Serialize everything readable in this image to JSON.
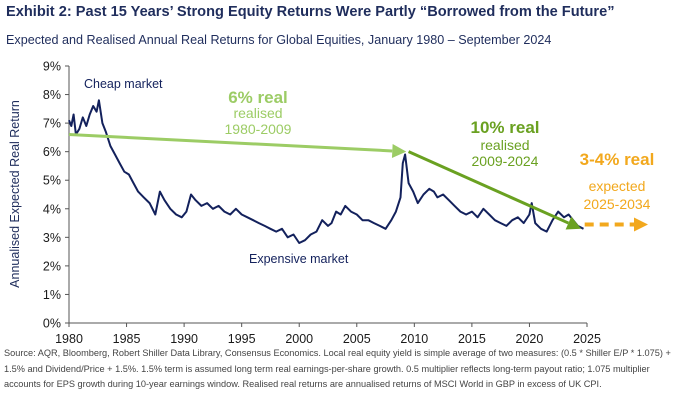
{
  "colors": {
    "series": "#13215c",
    "green_light": "#9ccc65",
    "green_dark": "#6aa121",
    "orange": "#f2a81d",
    "axis": "#555555"
  },
  "chart_data": {
    "type": "line",
    "title": "Exhibit 2: Past 15 Years’ Strong Equity Returns Were Partly “Borrowed from the Future”",
    "subtitle": "Expected and Realised Annual Real Returns for Global Equities, January 1980 – September 2024",
    "xlabel": "",
    "ylabel": "Annualised Expected Real Return",
    "xlim": [
      1980,
      2025
    ],
    "ylim": [
      0,
      9
    ],
    "x_ticks": [
      "1980",
      "1985",
      "1990",
      "1995",
      "2000",
      "2005",
      "2010",
      "2015",
      "2020",
      "2025"
    ],
    "y_ticks": [
      "0%",
      "1%",
      "2%",
      "3%",
      "4%",
      "5%",
      "6%",
      "7%",
      "8%",
      "9%"
    ],
    "grid": false,
    "legend": "none",
    "series": [
      {
        "x": [
          1980.0,
          1980.2,
          1980.4,
          1980.6,
          1980.9,
          1981.2,
          1981.5,
          1981.8,
          1982.1,
          1982.4,
          1982.6,
          1982.9,
          1983.2,
          1983.6,
          1984.0,
          1984.4,
          1984.8,
          1985.2,
          1985.6,
          1986.0,
          1986.5,
          1987.0,
          1987.5,
          1987.9,
          1988.3,
          1988.8,
          1989.3,
          1989.8,
          1990.2,
          1990.6,
          1991.0,
          1991.5,
          1992.0,
          1992.5,
          1993.0,
          1993.5,
          1994.0,
          1994.5,
          1995.0,
          1995.5,
          1996.0,
          1996.5,
          1997.0,
          1997.5,
          1998.0,
          1998.5,
          1999.0,
          1999.5,
          2000.0,
          2000.5,
          2001.0,
          2001.5,
          2002.0,
          2002.5,
          2002.8,
          2003.2,
          2003.6,
          2004.0,
          2004.5,
          2005.0,
          2005.5,
          2006.0,
          2006.5,
          2007.0,
          2007.5,
          2008.0,
          2008.4,
          2008.8,
          2009.0,
          2009.2,
          2009.5,
          2009.9,
          2010.3,
          2010.8,
          2011.3,
          2011.7,
          2012.0,
          2012.5,
          2013.0,
          2013.5,
          2014.0,
          2014.5,
          2015.0,
          2015.5,
          2016.0,
          2016.5,
          2017.0,
          2017.5,
          2018.0,
          2018.5,
          2019.0,
          2019.5,
          2020.0,
          2020.2,
          2020.5,
          2021.0,
          2021.5,
          2022.0,
          2022.5,
          2023.0,
          2023.4,
          2023.8,
          2024.2,
          2024.7
        ],
        "values": [
          7.1,
          6.9,
          7.3,
          6.6,
          6.8,
          7.2,
          6.9,
          7.3,
          7.6,
          7.4,
          7.8,
          7.0,
          6.7,
          6.2,
          5.9,
          5.6,
          5.3,
          5.2,
          4.9,
          4.6,
          4.4,
          4.2,
          3.8,
          4.6,
          4.3,
          4.0,
          3.8,
          3.7,
          3.9,
          4.5,
          4.3,
          4.1,
          4.2,
          4.0,
          4.1,
          3.9,
          3.8,
          4.0,
          3.8,
          3.7,
          3.6,
          3.5,
          3.4,
          3.3,
          3.2,
          3.3,
          3.0,
          3.1,
          2.8,
          2.9,
          3.1,
          3.2,
          3.6,
          3.4,
          3.5,
          3.9,
          3.8,
          4.1,
          3.9,
          3.8,
          3.6,
          3.6,
          3.5,
          3.4,
          3.3,
          3.6,
          3.9,
          4.4,
          5.6,
          5.9,
          4.9,
          4.6,
          4.2,
          4.5,
          4.7,
          4.6,
          4.4,
          4.5,
          4.3,
          4.1,
          3.9,
          3.8,
          3.9,
          3.7,
          4.0,
          3.8,
          3.6,
          3.5,
          3.4,
          3.6,
          3.7,
          3.5,
          3.8,
          4.2,
          3.5,
          3.3,
          3.2,
          3.6,
          3.9,
          3.7,
          3.8,
          3.6,
          3.4,
          3.3
        ]
      }
    ],
    "annotations": {
      "cheap_market": "Cheap market",
      "expensive_market": "Expensive market",
      "arrow1_headline": "6% real",
      "arrow1_line2": "realised",
      "arrow1_line3": "1980-2009",
      "arrow2_headline": "10% real",
      "arrow2_line2": "realised",
      "arrow2_line3": "2009-2024",
      "arrow3_headline": "3-4% real",
      "arrow3_line2": "expected",
      "arrow3_line3": "2025-2034"
    },
    "trend_arrows": [
      {
        "label": "6% real",
        "x": [
          1980.0,
          2009.3
        ],
        "y": [
          6.6,
          6.0
        ]
      },
      {
        "label": "10% real",
        "x": [
          2009.5,
          2024.5
        ],
        "y": [
          6.0,
          3.3
        ]
      },
      {
        "label": "3-4% real",
        "x": [
          2024.8,
          2030.3
        ],
        "y": [
          3.45,
          3.45
        ]
      }
    ]
  },
  "source_note": "Source: AQR, Bloomberg, Robert Shiller Data Library, Consensus Economics. Local real equity yield is simple average of two measures: (0.5 * Shiller E/P * 1.075) + 1.5% and Dividend/Price + 1.5%. 1.5% term is assumed long term real earnings-per-share growth. 0.5 multiplier reflects long-term payout ratio; 1.075 multiplier accounts for EPS growth during 10-year earnings window. Realised real returns are annualised returns of MSCI World in GBP in excess of UK CPI."
}
